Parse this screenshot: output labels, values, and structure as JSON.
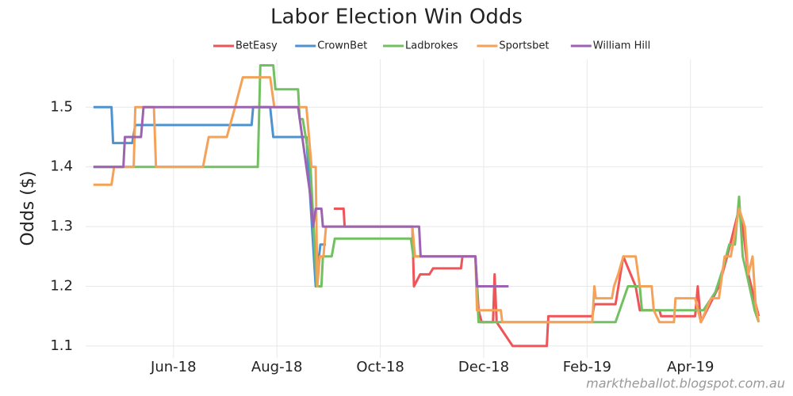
{
  "chart_data": {
    "type": "line",
    "title": "Labor Election Win Odds",
    "y_label": "Odds ($)",
    "source": "marktheballot.blogspot.com.au",
    "xlim": [
      4.3,
      17.4
    ],
    "xticks": [
      {
        "value": 6,
        "label": "Jun-18"
      },
      {
        "value": 8,
        "label": "Aug-18"
      },
      {
        "value": 10,
        "label": "Oct-18"
      },
      {
        "value": 12,
        "label": "Dec-18"
      },
      {
        "value": 14,
        "label": "Feb-19"
      },
      {
        "value": 16,
        "label": "Apr-19"
      }
    ],
    "ylim": [
      1.08,
      1.58
    ],
    "yticks": [
      1.1,
      1.2,
      1.3,
      1.4,
      1.5
    ],
    "grid": true,
    "legend": "top",
    "series": [
      {
        "name": "BetEasy",
        "color": "#ef5459",
        "x": [
          9.1,
          9.29,
          9.31,
          10.62,
          10.65,
          10.77,
          10.95,
          11.02,
          11.56,
          11.59,
          11.84,
          11.9,
          11.96,
          12.18,
          12.21,
          12.25,
          12.56,
          13.22,
          13.25,
          14.1,
          14.14,
          14.55,
          14.7,
          14.94,
          15.02,
          15.4,
          15.43,
          16.09,
          16.14,
          16.2,
          16.55,
          16.71,
          16.94,
          17.01,
          17.12,
          17.32
        ],
        "values": [
          1.33,
          1.33,
          1.3,
          1.3,
          1.2,
          1.22,
          1.22,
          1.23,
          1.23,
          1.25,
          1.25,
          1.16,
          1.14,
          1.14,
          1.22,
          1.14,
          1.1,
          1.1,
          1.15,
          1.15,
          1.17,
          1.17,
          1.25,
          1.2,
          1.16,
          1.16,
          1.15,
          1.15,
          1.2,
          1.14,
          1.2,
          1.25,
          1.33,
          1.3,
          1.22,
          1.15
        ]
      },
      {
        "name": "CrownBet",
        "color": "#4d93d0",
        "x": [
          4.45,
          4.8,
          4.83,
          5.2,
          5.26,
          7.51,
          7.54,
          7.87,
          7.93,
          8.57,
          8.75,
          8.84,
          8.95
        ],
        "values": [
          1.5,
          1.5,
          1.44,
          1.44,
          1.47,
          1.47,
          1.5,
          1.5,
          1.45,
          1.45,
          1.2,
          1.27,
          1.27
        ]
      },
      {
        "name": "Ladbrokes",
        "color": "#72c062",
        "x": [
          4.45,
          7.63,
          7.68,
          7.93,
          7.97,
          8.41,
          8.44,
          8.5,
          8.65,
          8.77,
          8.86,
          8.89,
          9.06,
          9.12,
          10.59,
          10.64,
          11.84,
          11.9,
          14.55,
          14.79,
          15.02,
          15.06,
          16.02,
          16.25,
          16.48,
          16.63,
          16.75,
          16.86,
          16.94,
          17.01,
          17.09,
          17.24,
          17.32
        ],
        "values": [
          1.4,
          1.4,
          1.57,
          1.57,
          1.53,
          1.53,
          1.48,
          1.48,
          1.4,
          1.2,
          1.2,
          1.25,
          1.25,
          1.28,
          1.28,
          1.25,
          1.25,
          1.14,
          1.14,
          1.2,
          1.2,
          1.16,
          1.16,
          1.16,
          1.19,
          1.23,
          1.27,
          1.27,
          1.35,
          1.25,
          1.22,
          1.16,
          1.14
        ]
      },
      {
        "name": "Sportsbet",
        "color": "#f5a259",
        "x": [
          4.45,
          4.8,
          4.85,
          5.23,
          5.26,
          5.62,
          5.66,
          6.57,
          6.68,
          7.03,
          7.19,
          7.34,
          7.87,
          7.95,
          8.57,
          8.67,
          8.75,
          8.78,
          8.83,
          8.9,
          8.95,
          10.62,
          10.67,
          11.84,
          11.87,
          12.33,
          12.36,
          14.1,
          14.14,
          14.17,
          14.48,
          14.52,
          14.6,
          14.7,
          14.94,
          15.02,
          15.25,
          15.29,
          15.4,
          15.68,
          15.71,
          16.09,
          16.2,
          16.4,
          16.55,
          16.66,
          16.78,
          16.94,
          17.05,
          17.12,
          17.2,
          17.26,
          17.32
        ],
        "values": [
          1.37,
          1.37,
          1.4,
          1.4,
          1.5,
          1.5,
          1.4,
          1.4,
          1.45,
          1.45,
          1.5,
          1.55,
          1.55,
          1.5,
          1.5,
          1.4,
          1.4,
          1.2,
          1.25,
          1.25,
          1.3,
          1.3,
          1.25,
          1.25,
          1.16,
          1.16,
          1.14,
          1.14,
          1.2,
          1.18,
          1.18,
          1.2,
          1.22,
          1.25,
          1.25,
          1.2,
          1.2,
          1.16,
          1.14,
          1.14,
          1.18,
          1.18,
          1.14,
          1.18,
          1.18,
          1.25,
          1.25,
          1.33,
          1.3,
          1.22,
          1.25,
          1.17,
          1.14
        ]
      },
      {
        "name": "William Hill",
        "color": "#9c63b2",
        "x": [
          4.45,
          5.03,
          5.06,
          5.37,
          5.42,
          8.41,
          8.65,
          8.7,
          8.75,
          8.86,
          8.89,
          10.75,
          10.78,
          11.84,
          11.87,
          12.48
        ],
        "values": [
          1.4,
          1.4,
          1.45,
          1.45,
          1.5,
          1.5,
          1.35,
          1.3,
          1.33,
          1.33,
          1.3,
          1.3,
          1.25,
          1.25,
          1.2,
          1.2
        ]
      }
    ]
  }
}
